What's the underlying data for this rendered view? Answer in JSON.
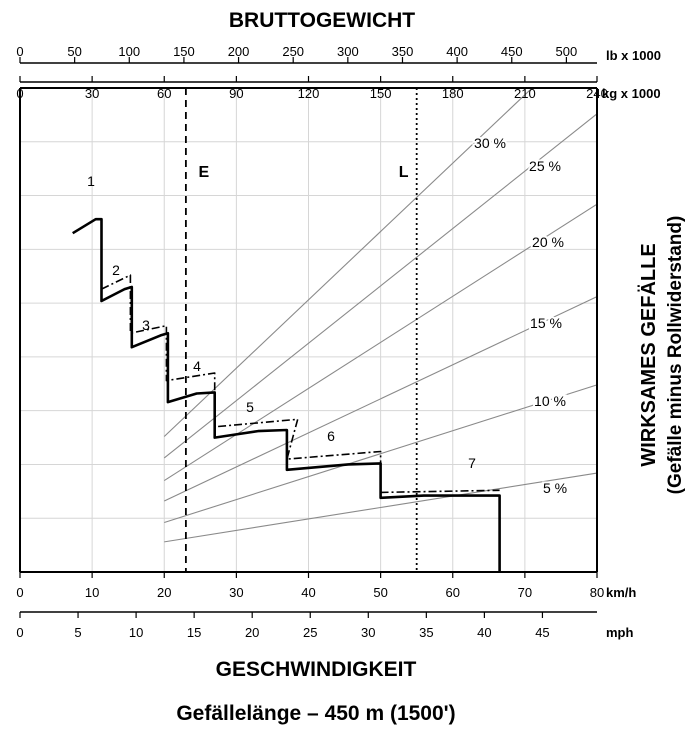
{
  "chart_data": {
    "type": "line",
    "title": "BRUTTOGEWICHT",
    "xlabel": "GESCHWINDIGKEIT",
    "subtitle": "Gefällelänge – 450 m (1500')",
    "ylabel": "WIRKSAMES GEFÄLLE",
    "ylabel2": "(Gefälle minus Rollwiderstand)",
    "axes": {
      "lb": {
        "unit": "lb x 1000",
        "range": [
          0,
          528
        ],
        "ticks": [
          0,
          50,
          100,
          150,
          200,
          250,
          300,
          350,
          400,
          450,
          500
        ]
      },
      "kg": {
        "unit": "kg x 1000",
        "range": [
          0,
          240
        ],
        "ticks": [
          0,
          30,
          60,
          90,
          120,
          150,
          180,
          210,
          240
        ]
      },
      "kmh": {
        "unit": "km/h",
        "range": [
          0,
          80
        ],
        "ticks": [
          0,
          10,
          20,
          30,
          40,
          50,
          60,
          70,
          80
        ]
      },
      "mph": {
        "unit": "mph",
        "range": [
          0,
          49.7
        ],
        "ticks": [
          0,
          5,
          10,
          15,
          20,
          25,
          30,
          35,
          40,
          45
        ]
      }
    },
    "grid": true,
    "reference_lines": [
      {
        "label": "E",
        "kg": 69
      },
      {
        "label": "L",
        "kg": 165
      }
    ],
    "grade_lines": [
      {
        "label": "5 %",
        "value": 5
      },
      {
        "label": "10 %",
        "value": 10
      },
      {
        "label": "15 %",
        "value": 15
      },
      {
        "label": "20 %",
        "value": 20
      },
      {
        "label": "25 %",
        "value": 25
      },
      {
        "label": "30 %",
        "value": 30
      }
    ],
    "gear_labels": [
      "1",
      "2",
      "3",
      "4",
      "5",
      "6",
      "7"
    ],
    "series": [
      {
        "style": "solid",
        "x": [
          7.3,
          10.5,
          11.3,
          11.3,
          14.5,
          15.5,
          15.5,
          19.5,
          20.5,
          20.5,
          24.5,
          27,
          27,
          33,
          37,
          37,
          45.5,
          50,
          50,
          56,
          66.5,
          66.5
        ],
        "y": [
          31.5,
          32.8,
          32.8,
          25.2,
          26.3,
          26.5,
          20.9,
          22.0,
          22.2,
          15.8,
          16.6,
          16.7,
          12.5,
          13.1,
          13.2,
          9.5,
          10.0,
          10.1,
          6.9,
          7.1,
          7.1,
          0
        ]
      },
      {
        "style": "dash-dot",
        "x": [
          11.3,
          15.3,
          15.3,
          20.3,
          20.3,
          27,
          27,
          38.5,
          37,
          50,
          50,
          66.5
        ],
        "y": [
          26.3,
          27.6,
          22.2,
          22.9,
          17.8,
          18.5,
          13.5,
          14.2,
          10.5,
          11.2,
          7.4,
          7.6
        ]
      }
    ]
  }
}
